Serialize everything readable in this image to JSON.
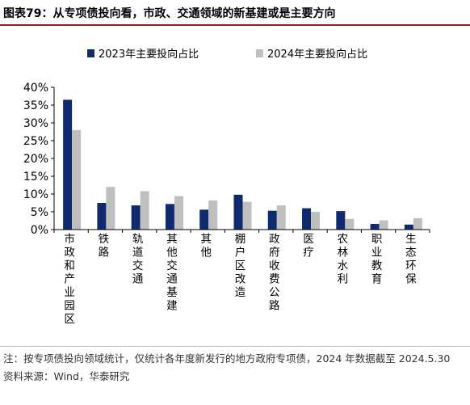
{
  "figure_title": "图表79：从专项债投向看，市政、交通领域的新基建或是主要方向",
  "note": "注：按专项债投向领域统计，仅统计各年度新发行的地方政府专项债，2024 年数据截至 2024.5.30",
  "source": "资料来源：Wind，华泰研究",
  "colors": {
    "series_2023": "#0f2a6e",
    "series_2024": "#bfbfbf",
    "title_rule": "#9c1c1c",
    "axis": "#000000"
  },
  "chart_data": {
    "type": "bar",
    "title": "",
    "xlabel": "",
    "ylabel": "",
    "ylim": [
      0,
      40
    ],
    "yticks": [
      "0%",
      "5%",
      "10%",
      "15%",
      "20%",
      "25%",
      "30%",
      "35%",
      "40%"
    ],
    "y_unit": "%",
    "grid": false,
    "legend_position": "top-center",
    "categories": [
      "市政和产业园区",
      "铁路",
      "轨道交通",
      "其他交通基建",
      "其他",
      "棚户区改造",
      "政府收费公路",
      "医疗",
      "农林水利",
      "职业教育",
      "生态环保"
    ],
    "series": [
      {
        "name": "2023年主要投向占比",
        "values": [
          36.5,
          7.5,
          6.8,
          7.2,
          5.6,
          9.8,
          5.3,
          6.0,
          5.2,
          1.6,
          1.4
        ]
      },
      {
        "name": "2024年主要投向占比",
        "values": [
          28.0,
          12.0,
          10.8,
          9.4,
          8.2,
          7.8,
          6.8,
          5.0,
          3.0,
          2.6,
          3.2
        ]
      }
    ]
  }
}
